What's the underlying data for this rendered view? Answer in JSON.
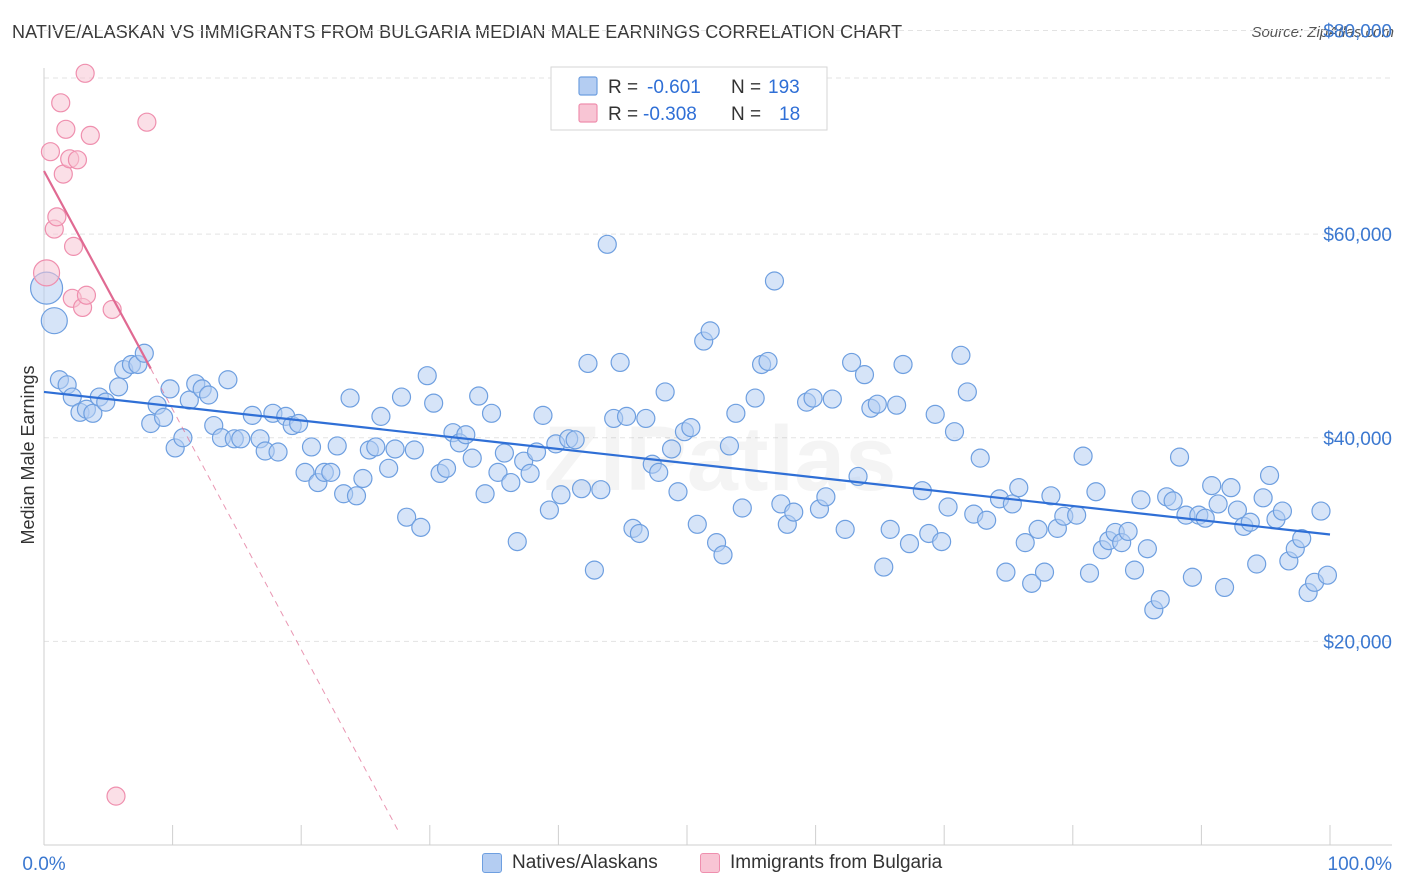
{
  "title": "NATIVE/ALASKAN VS IMMIGRANTS FROM BULGARIA MEDIAN MALE EARNINGS CORRELATION CHART",
  "source": "Source: ZipAtlas.com",
  "watermark": "ZIPatlas",
  "colors": {
    "blue": "#6e9fe0",
    "blue_fill": "#b4cdf2",
    "blue_line": "#2f6fd6",
    "pink": "#ef8fae",
    "pink_fill": "#f8c5d4",
    "pink_line": "#e06a92",
    "tick_label": "#3b78d0",
    "grid": "#e3e3e3"
  },
  "stats_legend": [
    {
      "r_label": "R = ",
      "r_value": "-0.601",
      "n_label": "N = ",
      "n_value": "193"
    },
    {
      "r_label": "R = ",
      "r_value": "-0.308",
      "n_label": "N = ",
      "n_value": "18"
    }
  ],
  "bottom_legend": [
    "Natives/Alaskans",
    "Immigrants from Bulgaria"
  ],
  "chart_data": {
    "type": "scatter",
    "title": "NATIVE/ALASKAN VS IMMIGRANTS FROM BULGARIA MEDIAN MALE EARNINGS CORRELATION CHART",
    "xlabel": "",
    "ylabel": "Median Male Earnings",
    "xlim": [
      0,
      100
    ],
    "ylim": [
      0,
      83000
    ],
    "x_tick_labels": [
      "0.0%",
      "100.0%"
    ],
    "y_ticks": [
      20000,
      40000,
      60000,
      80000
    ],
    "y_tick_labels": [
      "$20,000",
      "$40,000",
      "$60,000",
      "$80,000"
    ],
    "grid": true,
    "series": [
      {
        "name": "Natives/Alaskans",
        "color": "#6e9fe0",
        "trend": {
          "x": [
            0,
            100
          ],
          "y": [
            44500,
            30500
          ]
        },
        "points": [
          [
            0.2,
            54700
          ],
          [
            0.8,
            51500
          ],
          [
            1.2,
            45700
          ],
          [
            1.8,
            45200
          ],
          [
            2.2,
            44000
          ],
          [
            2.8,
            42500
          ],
          [
            3.3,
            42800
          ],
          [
            3.8,
            42400
          ],
          [
            4.3,
            44000
          ],
          [
            4.8,
            43500
          ],
          [
            5.8,
            45000
          ],
          [
            6.2,
            46700
          ],
          [
            6.8,
            47200
          ],
          [
            7.3,
            47200
          ],
          [
            7.8,
            48300
          ],
          [
            8.3,
            41400
          ],
          [
            8.8,
            43200
          ],
          [
            9.3,
            42000
          ],
          [
            9.8,
            44800
          ],
          [
            10.2,
            39000
          ],
          [
            10.8,
            40000
          ],
          [
            11.3,
            43700
          ],
          [
            11.8,
            45300
          ],
          [
            12.3,
            44800
          ],
          [
            12.8,
            44200
          ],
          [
            13.2,
            41200
          ],
          [
            13.8,
            40000
          ],
          [
            14.3,
            45700
          ],
          [
            14.8,
            39900
          ],
          [
            15.3,
            39900
          ],
          [
            16.2,
            42200
          ],
          [
            16.8,
            39900
          ],
          [
            17.2,
            38700
          ],
          [
            17.8,
            42400
          ],
          [
            18.2,
            38600
          ],
          [
            18.8,
            42100
          ],
          [
            19.3,
            41200
          ],
          [
            19.8,
            41400
          ],
          [
            20.3,
            36600
          ],
          [
            20.8,
            39100
          ],
          [
            21.3,
            35600
          ],
          [
            21.8,
            36600
          ],
          [
            22.3,
            36600
          ],
          [
            22.8,
            39200
          ],
          [
            23.3,
            34500
          ],
          [
            23.8,
            43900
          ],
          [
            24.3,
            34300
          ],
          [
            24.8,
            36000
          ],
          [
            25.3,
            38800
          ],
          [
            25.8,
            39100
          ],
          [
            26.2,
            42100
          ],
          [
            26.8,
            37000
          ],
          [
            27.3,
            38900
          ],
          [
            27.8,
            44000
          ],
          [
            28.2,
            32200
          ],
          [
            28.8,
            38800
          ],
          [
            29.3,
            31200
          ],
          [
            29.8,
            46100
          ],
          [
            30.3,
            43400
          ],
          [
            30.8,
            36500
          ],
          [
            31.3,
            37000
          ],
          [
            31.8,
            40500
          ],
          [
            32.3,
            39500
          ],
          [
            32.8,
            40300
          ],
          [
            33.3,
            38000
          ],
          [
            33.8,
            44100
          ],
          [
            34.3,
            34500
          ],
          [
            34.8,
            42400
          ],
          [
            35.3,
            36600
          ],
          [
            35.8,
            38500
          ],
          [
            36.3,
            35600
          ],
          [
            36.8,
            29800
          ],
          [
            37.3,
            37700
          ],
          [
            37.8,
            36500
          ],
          [
            38.3,
            38600
          ],
          [
            38.8,
            42200
          ],
          [
            39.3,
            32900
          ],
          [
            39.8,
            39400
          ],
          [
            40.2,
            34400
          ],
          [
            40.8,
            39900
          ],
          [
            41.3,
            39800
          ],
          [
            41.8,
            35000
          ],
          [
            42.3,
            47300
          ],
          [
            42.8,
            27000
          ],
          [
            43.3,
            34900
          ],
          [
            43.8,
            59000
          ],
          [
            44.3,
            41900
          ],
          [
            44.8,
            47400
          ],
          [
            45.3,
            42100
          ],
          [
            45.8,
            31100
          ],
          [
            46.3,
            30600
          ],
          [
            46.8,
            41900
          ],
          [
            47.3,
            37400
          ],
          [
            47.8,
            36600
          ],
          [
            48.3,
            44500
          ],
          [
            48.8,
            38900
          ],
          [
            49.3,
            34700
          ],
          [
            49.8,
            40600
          ],
          [
            50.3,
            41000
          ],
          [
            50.8,
            31500
          ],
          [
            51.3,
            49500
          ],
          [
            51.8,
            50500
          ],
          [
            52.3,
            29700
          ],
          [
            52.8,
            28500
          ],
          [
            53.3,
            39200
          ],
          [
            53.8,
            42400
          ],
          [
            54.3,
            33100
          ],
          [
            55.3,
            43900
          ],
          [
            55.8,
            47200
          ],
          [
            56.3,
            47500
          ],
          [
            56.8,
            55400
          ],
          [
            57.3,
            33500
          ],
          [
            57.8,
            31500
          ],
          [
            58.3,
            32700
          ],
          [
            59.3,
            43500
          ],
          [
            59.8,
            43900
          ],
          [
            60.3,
            33000
          ],
          [
            60.8,
            34200
          ],
          [
            61.3,
            43800
          ],
          [
            62.3,
            31000
          ],
          [
            62.8,
            47400
          ],
          [
            63.3,
            36200
          ],
          [
            63.8,
            46200
          ],
          [
            64.3,
            42900
          ],
          [
            64.8,
            43300
          ],
          [
            65.3,
            27300
          ],
          [
            65.8,
            31000
          ],
          [
            66.3,
            43200
          ],
          [
            66.8,
            47200
          ],
          [
            67.3,
            29600
          ],
          [
            68.3,
            34800
          ],
          [
            68.8,
            30600
          ],
          [
            69.3,
            42300
          ],
          [
            69.8,
            29800
          ],
          [
            70.3,
            33200
          ],
          [
            70.8,
            40600
          ],
          [
            71.3,
            48100
          ],
          [
            71.8,
            44500
          ],
          [
            72.3,
            32500
          ],
          [
            72.8,
            38000
          ],
          [
            73.3,
            31900
          ],
          [
            74.3,
            34000
          ],
          [
            74.8,
            26800
          ],
          [
            75.3,
            33500
          ],
          [
            75.8,
            35100
          ],
          [
            76.3,
            29700
          ],
          [
            76.8,
            25700
          ],
          [
            77.3,
            31000
          ],
          [
            77.8,
            26800
          ],
          [
            78.3,
            34300
          ],
          [
            78.8,
            31100
          ],
          [
            79.3,
            32300
          ],
          [
            80.3,
            32400
          ],
          [
            80.8,
            38200
          ],
          [
            81.3,
            26700
          ],
          [
            81.8,
            34700
          ],
          [
            82.3,
            29000
          ],
          [
            82.8,
            29900
          ],
          [
            83.3,
            30700
          ],
          [
            83.8,
            29700
          ],
          [
            84.3,
            30800
          ],
          [
            84.8,
            27000
          ],
          [
            85.3,
            33900
          ],
          [
            85.8,
            29100
          ],
          [
            86.3,
            23100
          ],
          [
            86.8,
            24100
          ],
          [
            87.3,
            34200
          ],
          [
            87.8,
            33800
          ],
          [
            88.3,
            38100
          ],
          [
            88.8,
            32400
          ],
          [
            89.3,
            26300
          ],
          [
            89.8,
            32400
          ],
          [
            90.3,
            32100
          ],
          [
            90.8,
            35300
          ],
          [
            91.3,
            33500
          ],
          [
            91.8,
            25300
          ],
          [
            92.3,
            35100
          ],
          [
            92.8,
            32900
          ],
          [
            93.3,
            31300
          ],
          [
            93.8,
            31700
          ],
          [
            94.3,
            27600
          ],
          [
            94.8,
            34100
          ],
          [
            95.3,
            36300
          ],
          [
            95.8,
            32000
          ],
          [
            96.3,
            32800
          ],
          [
            96.8,
            27900
          ],
          [
            97.3,
            29100
          ],
          [
            97.8,
            30100
          ],
          [
            98.3,
            24800
          ],
          [
            98.8,
            25800
          ],
          [
            99.3,
            32800
          ],
          [
            99.8,
            26500
          ]
        ]
      },
      {
        "name": "Immigrants from Bulgaria",
        "color": "#ef8fae",
        "trend": {
          "x": [
            0,
            8.3
          ],
          "y": [
            66200,
            46800
          ]
        },
        "trend_dashed": {
          "x": [
            8.3,
            27.5
          ],
          "y": [
            46800,
            1500
          ]
        },
        "points": [
          [
            0.2,
            56200
          ],
          [
            0.5,
            68100
          ],
          [
            0.8,
            60500
          ],
          [
            1.0,
            61700
          ],
          [
            1.3,
            72900
          ],
          [
            1.5,
            65900
          ],
          [
            1.7,
            70300
          ],
          [
            2.0,
            67400
          ],
          [
            2.2,
            53700
          ],
          [
            2.3,
            58800
          ],
          [
            2.6,
            67300
          ],
          [
            3.0,
            52800
          ],
          [
            3.2,
            75800
          ],
          [
            3.3,
            54000
          ],
          [
            3.6,
            69700
          ],
          [
            5.3,
            52600
          ],
          [
            5.6,
            4800
          ],
          [
            8.0,
            71000
          ]
        ]
      }
    ]
  }
}
